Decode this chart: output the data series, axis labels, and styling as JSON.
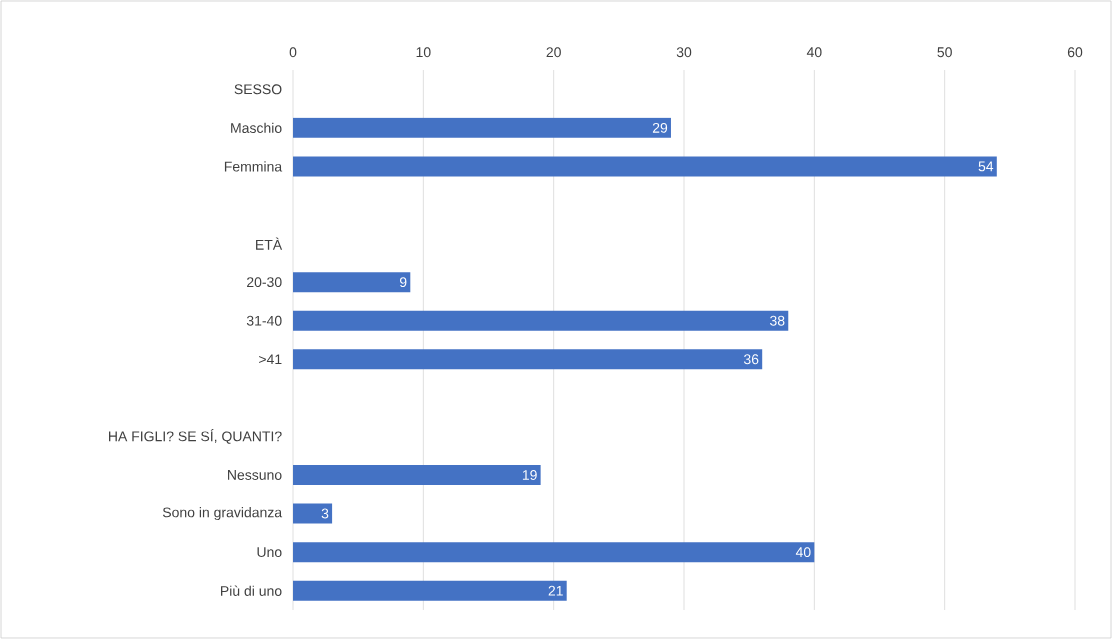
{
  "chart_data": {
    "type": "bar",
    "orientation": "horizontal",
    "categories": [
      "SESSO",
      "Maschio",
      "Femmina",
      null,
      "ETÀ",
      "20-30",
      "31-40",
      ">41",
      null,
      "HA FIGLI? SE SÍ, QUANTI?",
      "Nessuno",
      "Sono in gravidanza",
      "Uno",
      "Più di uno"
    ],
    "values": [
      null,
      29,
      54,
      null,
      null,
      9,
      38,
      36,
      null,
      null,
      19,
      3,
      40,
      21
    ],
    "color": "#4472c4",
    "xlim": [
      0,
      60
    ],
    "xticks": [
      0,
      10,
      20,
      30,
      40,
      50,
      60
    ],
    "grid": "x",
    "data_labels": true
  }
}
